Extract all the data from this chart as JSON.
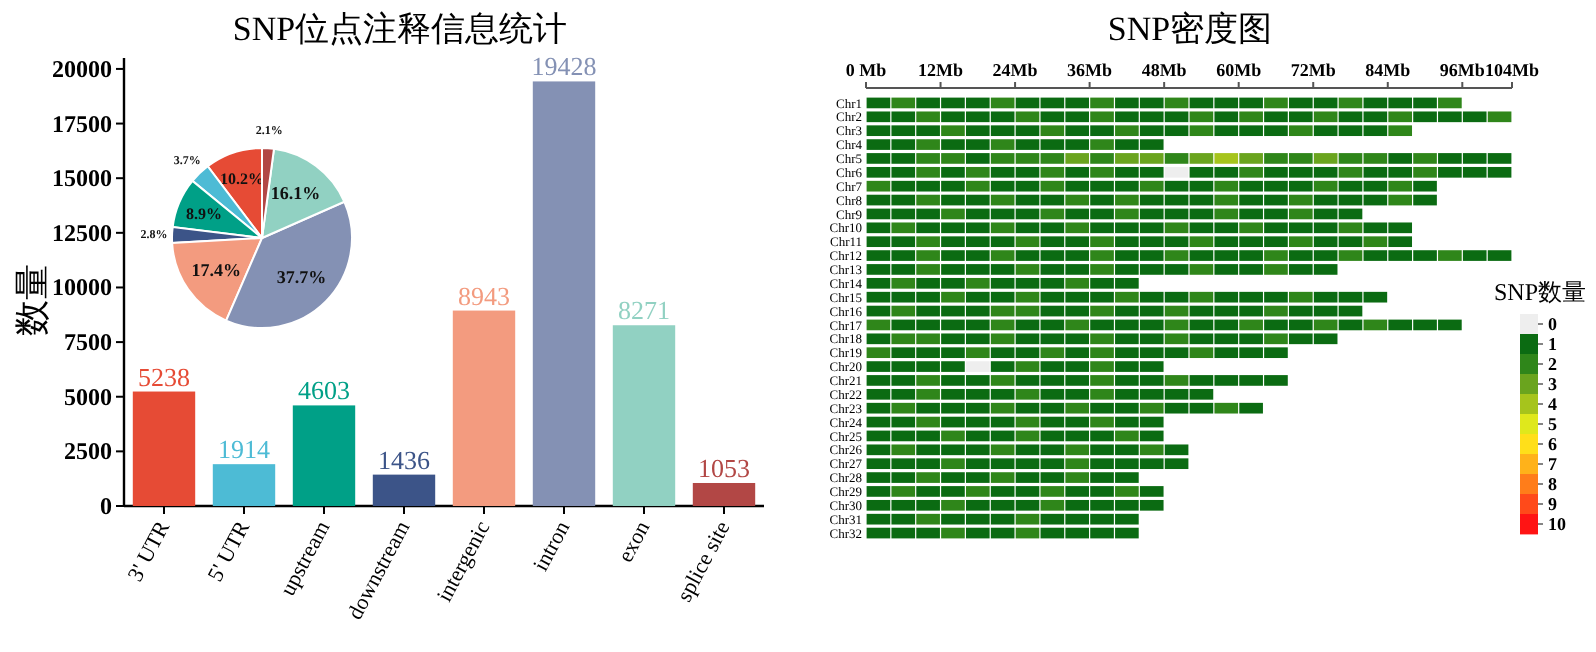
{
  "chart_data": [
    {
      "type": "bar",
      "title": "SNP位点注释信息统计",
      "ylabel": "数量",
      "categories": [
        "3' UTR",
        "5' UTR",
        "upstream",
        "downstream",
        "intergenic",
        "intron",
        "exon",
        "splice site"
      ],
      "values": [
        5238,
        1914,
        4603,
        1436,
        8943,
        19428,
        8271,
        1053
      ],
      "colors": [
        "#e64b35",
        "#4dbbd5",
        "#00a087",
        "#3c5488",
        "#f39b7f",
        "#8491b4",
        "#91d1c2",
        "#b24745"
      ],
      "data_labels": true,
      "ylim": [
        0,
        20500
      ],
      "yticks": [
        0,
        2500,
        5000,
        7500,
        10000,
        12500,
        15000,
        17500,
        20000
      ]
    },
    {
      "type": "pie",
      "categories": [
        null,
        null,
        null,
        null,
        null,
        null,
        null,
        null
      ],
      "values": [
        10.2,
        3.7,
        8.9,
        2.8,
        17.4,
        37.7,
        16.1,
        2.1
      ],
      "colors": [
        "#e64b35",
        "#4dbbd5",
        "#00a087",
        "#3c5488",
        "#f39b7f",
        "#8491b4",
        "#91d1c2",
        "#b24745"
      ],
      "value_labels": [
        "10.2%",
        "3.7%",
        "8.9%",
        "2.8%",
        "17.4%",
        "37.7%",
        "16.1%",
        "2.1%"
      ]
    },
    {
      "type": "heatmap",
      "title": "SNP密度图",
      "clabel": "SNP数量",
      "x": [
        2,
        6,
        10,
        14,
        18,
        22,
        26,
        30,
        34,
        38,
        42,
        46,
        50,
        54,
        58,
        62,
        66,
        70,
        74,
        78,
        82,
        86,
        90,
        94,
        98,
        102
      ],
      "xlim": [
        0,
        104
      ],
      "xticks": [
        {
          "value": 0,
          "label": "0 Mb"
        },
        {
          "value": 12,
          "label": "12Mb"
        },
        {
          "value": 24,
          "label": "24Mb"
        },
        {
          "value": 36,
          "label": "36Mb"
        },
        {
          "value": 48,
          "label": "48Mb"
        },
        {
          "value": 60,
          "label": "60Mb"
        },
        {
          "value": 72,
          "label": "72Mb"
        },
        {
          "value": 84,
          "label": "84Mb"
        },
        {
          "value": 96,
          "label": "96Mb"
        },
        {
          "value": 104,
          "label": "104Mb"
        }
      ],
      "y_categories": [
        "Chr1",
        "Chr2",
        "Chr3",
        "Chr4",
        "Chr5",
        "Chr6",
        "Chr7",
        "Chr8",
        "Chr9",
        "Chr10",
        "Chr11",
        "Chr12",
        "Chr13",
        "Chr14",
        "Chr15",
        "Chr16",
        "Chr17",
        "Chr18",
        "Chr19",
        "Chr20",
        "Chr21",
        "Chr22",
        "Chr23",
        "Chr24",
        "Chr25",
        "Chr26",
        "Chr27",
        "Chr28",
        "Chr29",
        "Chr30",
        "Chr31",
        "Chr32"
      ],
      "clim": [
        -0.5,
        10.5
      ],
      "cticks": [
        0,
        1,
        2,
        3,
        4,
        5,
        6,
        7,
        8,
        9,
        10
      ],
      "cells": [
        [
          1,
          2,
          1,
          1,
          1,
          2,
          1,
          1,
          1,
          2,
          1,
          1,
          2,
          1,
          1,
          1,
          2,
          1,
          1,
          2,
          1,
          1,
          1,
          2,
          null,
          null
        ],
        [
          1,
          1,
          2,
          1,
          1,
          1,
          2,
          1,
          1,
          2,
          1,
          1,
          1,
          2,
          1,
          2,
          1,
          1,
          2,
          1,
          1,
          2,
          1,
          1,
          1,
          2
        ],
        [
          1,
          1,
          1,
          2,
          1,
          1,
          1,
          2,
          1,
          1,
          2,
          1,
          1,
          2,
          1,
          1,
          1,
          2,
          1,
          1,
          1,
          2,
          null,
          null,
          null,
          null
        ],
        [
          1,
          1,
          2,
          1,
          1,
          2,
          1,
          1,
          1,
          2,
          1,
          1,
          null,
          null,
          null,
          null,
          null,
          null,
          null,
          null,
          null,
          null,
          null,
          null,
          null,
          null
        ],
        [
          1,
          1,
          2,
          2,
          1,
          2,
          2,
          2,
          3,
          2,
          3,
          3,
          2,
          3,
          4,
          3,
          2,
          2,
          3,
          2,
          2,
          1,
          2,
          1,
          1,
          1
        ],
        [
          1,
          1,
          2,
          1,
          2,
          1,
          1,
          2,
          1,
          2,
          1,
          1,
          0,
          1,
          1,
          2,
          1,
          1,
          1,
          2,
          1,
          1,
          2,
          1,
          1,
          1
        ],
        [
          2,
          1,
          1,
          1,
          2,
          1,
          1,
          2,
          1,
          1,
          1,
          2,
          1,
          1,
          2,
          1,
          1,
          1,
          2,
          1,
          1,
          2,
          1,
          null,
          null,
          null
        ],
        [
          1,
          1,
          2,
          1,
          1,
          2,
          1,
          1,
          2,
          1,
          2,
          1,
          1,
          1,
          2,
          1,
          1,
          2,
          1,
          1,
          1,
          2,
          1,
          null,
          null,
          null
        ],
        [
          1,
          1,
          1,
          2,
          1,
          1,
          1,
          2,
          1,
          1,
          2,
          1,
          1,
          1,
          2,
          1,
          1,
          2,
          1,
          1,
          null,
          null,
          null,
          null,
          null,
          null
        ],
        [
          1,
          2,
          1,
          1,
          1,
          2,
          1,
          1,
          2,
          1,
          1,
          1,
          2,
          1,
          1,
          2,
          1,
          1,
          1,
          2,
          1,
          1,
          null,
          null,
          null,
          null
        ],
        [
          1,
          1,
          2,
          1,
          1,
          1,
          2,
          1,
          1,
          2,
          1,
          1,
          1,
          2,
          1,
          1,
          1,
          2,
          1,
          1,
          2,
          1,
          null,
          null,
          null,
          null
        ],
        [
          1,
          1,
          2,
          1,
          1,
          2,
          1,
          1,
          1,
          2,
          1,
          1,
          2,
          1,
          1,
          1,
          2,
          1,
          1,
          2,
          1,
          1,
          1,
          2,
          1,
          1
        ],
        [
          1,
          1,
          2,
          1,
          1,
          1,
          2,
          1,
          1,
          2,
          1,
          1,
          1,
          2,
          1,
          1,
          2,
          1,
          1,
          null,
          null,
          null,
          null,
          null,
          null,
          null
        ],
        [
          1,
          2,
          1,
          1,
          2,
          1,
          1,
          1,
          2,
          1,
          1,
          null,
          null,
          null,
          null,
          null,
          null,
          null,
          null,
          null,
          null,
          null,
          null,
          null,
          null,
          null
        ],
        [
          1,
          1,
          1,
          2,
          1,
          1,
          2,
          1,
          1,
          1,
          2,
          1,
          1,
          2,
          1,
          1,
          1,
          2,
          1,
          1,
          1,
          null,
          null,
          null,
          null,
          null
        ],
        [
          1,
          2,
          1,
          1,
          1,
          2,
          2,
          1,
          1,
          2,
          1,
          1,
          2,
          1,
          1,
          1,
          2,
          1,
          1,
          1,
          null,
          null,
          null,
          null,
          null,
          null
        ],
        [
          2,
          1,
          1,
          1,
          1,
          2,
          1,
          1,
          2,
          1,
          1,
          1,
          2,
          1,
          1,
          2,
          1,
          1,
          2,
          1,
          2,
          1,
          1,
          1,
          null,
          null
        ],
        [
          1,
          2,
          2,
          1,
          1,
          2,
          1,
          1,
          1,
          2,
          1,
          1,
          2,
          1,
          1,
          1,
          2,
          1,
          1,
          null,
          null,
          null,
          null,
          null,
          null,
          null
        ],
        [
          2,
          1,
          1,
          1,
          2,
          1,
          1,
          2,
          1,
          2,
          1,
          1,
          1,
          2,
          1,
          1,
          1,
          null,
          null,
          null,
          null,
          null,
          null,
          null,
          null,
          null
        ],
        [
          1,
          1,
          1,
          1,
          0,
          1,
          2,
          1,
          1,
          2,
          1,
          1,
          null,
          null,
          null,
          null,
          null,
          null,
          null,
          null,
          null,
          null,
          null,
          null,
          null,
          null
        ],
        [
          1,
          1,
          2,
          1,
          1,
          2,
          1,
          1,
          1,
          2,
          1,
          1,
          2,
          1,
          1,
          1,
          1,
          null,
          null,
          null,
          null,
          null,
          null,
          null,
          null,
          null
        ],
        [
          1,
          1,
          2,
          1,
          1,
          1,
          2,
          1,
          1,
          2,
          1,
          1,
          1,
          1,
          null,
          null,
          null,
          null,
          null,
          null,
          null,
          null,
          null,
          null,
          null,
          null
        ],
        [
          1,
          2,
          1,
          1,
          1,
          2,
          1,
          1,
          2,
          1,
          1,
          2,
          1,
          1,
          2,
          1,
          null,
          null,
          null,
          null,
          null,
          null,
          null,
          null,
          null,
          null
        ],
        [
          1,
          1,
          2,
          1,
          1,
          1,
          2,
          1,
          1,
          2,
          1,
          1,
          null,
          null,
          null,
          null,
          null,
          null,
          null,
          null,
          null,
          null,
          null,
          null,
          null,
          null
        ],
        [
          1,
          1,
          1,
          2,
          1,
          1,
          2,
          1,
          1,
          1,
          2,
          1,
          null,
          null,
          null,
          null,
          null,
          null,
          null,
          null,
          null,
          null,
          null,
          null,
          null,
          null
        ],
        [
          1,
          2,
          1,
          1,
          1,
          2,
          1,
          1,
          2,
          1,
          1,
          2,
          1,
          null,
          null,
          null,
          null,
          null,
          null,
          null,
          null,
          null,
          null,
          null,
          null,
          null
        ],
        [
          1,
          1,
          1,
          2,
          1,
          1,
          1,
          1,
          2,
          1,
          1,
          1,
          1,
          null,
          null,
          null,
          null,
          null,
          null,
          null,
          null,
          null,
          null,
          null,
          null,
          null
        ],
        [
          1,
          1,
          2,
          1,
          1,
          2,
          1,
          1,
          2,
          1,
          1,
          null,
          null,
          null,
          null,
          null,
          null,
          null,
          null,
          null,
          null,
          null,
          null,
          null,
          null,
          null
        ],
        [
          1,
          2,
          1,
          1,
          2,
          1,
          1,
          2,
          1,
          1,
          2,
          1,
          null,
          null,
          null,
          null,
          null,
          null,
          null,
          null,
          null,
          null,
          null,
          null,
          null,
          null
        ],
        [
          1,
          1,
          1,
          2,
          1,
          1,
          1,
          2,
          1,
          1,
          1,
          1,
          null,
          null,
          null,
          null,
          null,
          null,
          null,
          null,
          null,
          null,
          null,
          null,
          null,
          null
        ],
        [
          1,
          1,
          2,
          1,
          1,
          1,
          2,
          1,
          1,
          1,
          1,
          null,
          null,
          null,
          null,
          null,
          null,
          null,
          null,
          null,
          null,
          null,
          null,
          null,
          null,
          null
        ],
        [
          1,
          1,
          1,
          2,
          1,
          1,
          2,
          1,
          1,
          1,
          1,
          null,
          null,
          null,
          null,
          null,
          null,
          null,
          null,
          null,
          null,
          null,
          null,
          null,
          null,
          null
        ]
      ]
    }
  ]
}
